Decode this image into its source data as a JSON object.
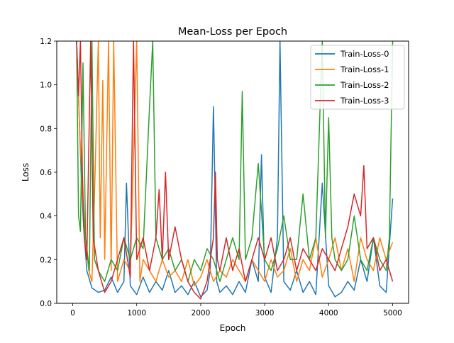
{
  "chart_data": {
    "type": "line",
    "title": "Mean-Loss per Epoch",
    "xlabel": "Epoch",
    "ylabel": "Loss",
    "xlim": [
      -250,
      5250
    ],
    "ylim": [
      0.0,
      1.2
    ],
    "x_ticks": [
      0,
      1000,
      2000,
      3000,
      4000,
      5000
    ],
    "x_tick_labels": [
      "0",
      "1000",
      "2000",
      "3000",
      "4000",
      "5000"
    ],
    "y_ticks": [
      0.0,
      0.2,
      0.4,
      0.6,
      0.8,
      1.0,
      1.2
    ],
    "y_tick_labels": [
      "0.0",
      "0.2",
      "0.4",
      "0.6",
      "0.8",
      "1.0",
      "1.2"
    ],
    "grid": false,
    "legend_position": "top-right",
    "series": [
      {
        "name": "Train-Loss-0",
        "color": "#1f77b4",
        "points": [
          [
            60,
            1.2
          ],
          [
            90,
            0.95
          ],
          [
            130,
            0.6
          ],
          [
            170,
            0.35
          ],
          [
            220,
            0.15
          ],
          [
            300,
            0.07
          ],
          [
            400,
            0.05
          ],
          [
            500,
            0.06
          ],
          [
            600,
            0.12
          ],
          [
            700,
            0.05
          ],
          [
            800,
            0.1
          ],
          [
            840,
            0.55
          ],
          [
            900,
            0.08
          ],
          [
            1000,
            0.04
          ],
          [
            1100,
            0.12
          ],
          [
            1200,
            0.05
          ],
          [
            1300,
            0.1
          ],
          [
            1400,
            0.06
          ],
          [
            1500,
            0.15
          ],
          [
            1600,
            0.05
          ],
          [
            1700,
            0.08
          ],
          [
            1800,
            0.04
          ],
          [
            1900,
            0.1
          ],
          [
            2000,
            0.03
          ],
          [
            2100,
            0.06
          ],
          [
            2150,
            0.15
          ],
          [
            2200,
            0.9
          ],
          [
            2250,
            0.1
          ],
          [
            2300,
            0.05
          ],
          [
            2400,
            0.08
          ],
          [
            2500,
            0.04
          ],
          [
            2600,
            0.1
          ],
          [
            2700,
            0.05
          ],
          [
            2800,
            0.2
          ],
          [
            2900,
            0.1
          ],
          [
            2950,
            0.68
          ],
          [
            3000,
            0.12
          ],
          [
            3100,
            0.05
          ],
          [
            3200,
            0.3
          ],
          [
            3240,
            1.2
          ],
          [
            3300,
            0.1
          ],
          [
            3400,
            0.06
          ],
          [
            3500,
            0.15
          ],
          [
            3600,
            0.05
          ],
          [
            3700,
            0.1
          ],
          [
            3800,
            0.04
          ],
          [
            3900,
            0.55
          ],
          [
            4000,
            0.08
          ],
          [
            4100,
            0.03
          ],
          [
            4200,
            0.05
          ],
          [
            4300,
            0.1
          ],
          [
            4400,
            0.06
          ],
          [
            4500,
            0.2
          ],
          [
            4600,
            0.1
          ],
          [
            4700,
            0.3
          ],
          [
            4800,
            0.08
          ],
          [
            4900,
            0.05
          ],
          [
            5000,
            0.48
          ]
        ]
      },
      {
        "name": "Train-Loss-1",
        "color": "#ff7f0e",
        "points": [
          [
            60,
            1.2
          ],
          [
            100,
            0.85
          ],
          [
            150,
            0.5
          ],
          [
            200,
            0.3
          ],
          [
            250,
            0.15
          ],
          [
            300,
            0.1
          ],
          [
            350,
            0.6
          ],
          [
            400,
            1.2
          ],
          [
            430,
            0.3
          ],
          [
            470,
            1.02
          ],
          [
            500,
            0.2
          ],
          [
            560,
            1.2
          ],
          [
            600,
            0.15
          ],
          [
            640,
            1.2
          ],
          [
            700,
            0.1
          ],
          [
            800,
            0.2
          ],
          [
            900,
            0.15
          ],
          [
            1000,
            1.2
          ],
          [
            1050,
            0.1
          ],
          [
            1100,
            0.2
          ],
          [
            1200,
            0.15
          ],
          [
            1300,
            0.1
          ],
          [
            1400,
            0.2
          ],
          [
            1500,
            0.12
          ],
          [
            1600,
            0.15
          ],
          [
            1700,
            0.1
          ],
          [
            1800,
            0.2
          ],
          [
            1900,
            0.08
          ],
          [
            2000,
            0.12
          ],
          [
            2100,
            0.2
          ],
          [
            2200,
            0.1
          ],
          [
            2300,
            0.15
          ],
          [
            2400,
            0.12
          ],
          [
            2500,
            0.2
          ],
          [
            2600,
            0.15
          ],
          [
            2700,
            0.1
          ],
          [
            2800,
            0.2
          ],
          [
            2900,
            0.15
          ],
          [
            3000,
            0.1
          ],
          [
            3100,
            0.2
          ],
          [
            3200,
            0.12
          ],
          [
            3300,
            0.15
          ],
          [
            3400,
            0.25
          ],
          [
            3500,
            0.1
          ],
          [
            3600,
            0.2
          ],
          [
            3700,
            0.15
          ],
          [
            3800,
            0.3
          ],
          [
            3900,
            0.12
          ],
          [
            4000,
            0.2
          ],
          [
            4100,
            0.3
          ],
          [
            4200,
            0.15
          ],
          [
            4300,
            0.25
          ],
          [
            4400,
            0.1
          ],
          [
            4500,
            0.3
          ],
          [
            4600,
            0.2
          ],
          [
            4700,
            0.15
          ],
          [
            4800,
            0.3
          ],
          [
            4900,
            0.2
          ],
          [
            5000,
            0.28
          ]
        ]
      },
      {
        "name": "Train-Loss-2",
        "color": "#2ca02c",
        "points": [
          [
            60,
            1.2
          ],
          [
            90,
            0.4
          ],
          [
            120,
            0.33
          ],
          [
            160,
            1.1
          ],
          [
            200,
            0.3
          ],
          [
            260,
            0.15
          ],
          [
            300,
            1.2
          ],
          [
            340,
            0.2
          ],
          [
            400,
            0.15
          ],
          [
            500,
            0.1
          ],
          [
            600,
            0.2
          ],
          [
            700,
            0.15
          ],
          [
            800,
            0.3
          ],
          [
            900,
            0.2
          ],
          [
            1000,
            0.3
          ],
          [
            1100,
            0.25
          ],
          [
            1200,
            0.9
          ],
          [
            1250,
            1.2
          ],
          [
            1300,
            0.3
          ],
          [
            1400,
            0.2
          ],
          [
            1500,
            0.25
          ],
          [
            1600,
            0.15
          ],
          [
            1700,
            0.2
          ],
          [
            1800,
            0.1
          ],
          [
            1900,
            0.2
          ],
          [
            2000,
            0.15
          ],
          [
            2100,
            0.25
          ],
          [
            2200,
            0.2
          ],
          [
            2300,
            0.1
          ],
          [
            2400,
            0.2
          ],
          [
            2500,
            0.3
          ],
          [
            2600,
            0.2
          ],
          [
            2650,
            0.97
          ],
          [
            2700,
            0.2
          ],
          [
            2800,
            0.3
          ],
          [
            2900,
            0.64
          ],
          [
            3000,
            0.2
          ],
          [
            3100,
            0.15
          ],
          [
            3200,
            0.25
          ],
          [
            3300,
            0.4
          ],
          [
            3400,
            0.2
          ],
          [
            3500,
            0.2
          ],
          [
            3600,
            0.5
          ],
          [
            3700,
            0.2
          ],
          [
            3800,
            0.3
          ],
          [
            3900,
            1.2
          ],
          [
            3950,
            0.3
          ],
          [
            4000,
            0.85
          ],
          [
            4050,
            0.3
          ],
          [
            4100,
            0.2
          ],
          [
            4200,
            0.15
          ],
          [
            4300,
            0.2
          ],
          [
            4400,
            0.4
          ],
          [
            4500,
            0.2
          ],
          [
            4600,
            0.15
          ],
          [
            4700,
            0.3
          ],
          [
            4800,
            0.2
          ],
          [
            4900,
            0.15
          ],
          [
            4950,
            0.3
          ],
          [
            5000,
            1.2
          ]
        ]
      },
      {
        "name": "Train-Loss-3",
        "color": "#d62728",
        "points": [
          [
            60,
            1.2
          ],
          [
            90,
            0.95
          ],
          [
            120,
            1.2
          ],
          [
            150,
            0.6
          ],
          [
            180,
            0.3
          ],
          [
            220,
            0.2
          ],
          [
            280,
            1.2
          ],
          [
            320,
            0.3
          ],
          [
            400,
            0.15
          ],
          [
            500,
            0.05
          ],
          [
            600,
            0.1
          ],
          [
            700,
            0.2
          ],
          [
            800,
            0.3
          ],
          [
            900,
            0.12
          ],
          [
            950,
            1.2
          ],
          [
            1000,
            0.2
          ],
          [
            1100,
            0.3
          ],
          [
            1200,
            0.15
          ],
          [
            1300,
            0.3
          ],
          [
            1350,
            0.52
          ],
          [
            1400,
            0.2
          ],
          [
            1450,
            0.6
          ],
          [
            1500,
            0.2
          ],
          [
            1600,
            0.35
          ],
          [
            1700,
            0.2
          ],
          [
            1800,
            0.1
          ],
          [
            1900,
            0.05
          ],
          [
            2000,
            0.02
          ],
          [
            2100,
            0.1
          ],
          [
            2200,
            0.3
          ],
          [
            2230,
            0.6
          ],
          [
            2260,
            0.2
          ],
          [
            2300,
            0.15
          ],
          [
            2400,
            0.3
          ],
          [
            2500,
            0.15
          ],
          [
            2600,
            0.25
          ],
          [
            2700,
            0.1
          ],
          [
            2800,
            0.2
          ],
          [
            2900,
            0.3
          ],
          [
            3000,
            0.2
          ],
          [
            3100,
            0.3
          ],
          [
            3200,
            0.15
          ],
          [
            3300,
            0.2
          ],
          [
            3400,
            0.3
          ],
          [
            3500,
            0.15
          ],
          [
            3600,
            0.25
          ],
          [
            3700,
            0.2
          ],
          [
            3800,
            0.15
          ],
          [
            3900,
            0.25
          ],
          [
            4000,
            0.2
          ],
          [
            4100,
            0.15
          ],
          [
            4200,
            0.25
          ],
          [
            4300,
            0.35
          ],
          [
            4400,
            0.5
          ],
          [
            4500,
            0.4
          ],
          [
            4550,
            0.63
          ],
          [
            4600,
            0.25
          ],
          [
            4700,
            0.3
          ],
          [
            4800,
            0.15
          ],
          [
            4900,
            0.2
          ],
          [
            5000,
            0.1
          ]
        ]
      }
    ]
  }
}
